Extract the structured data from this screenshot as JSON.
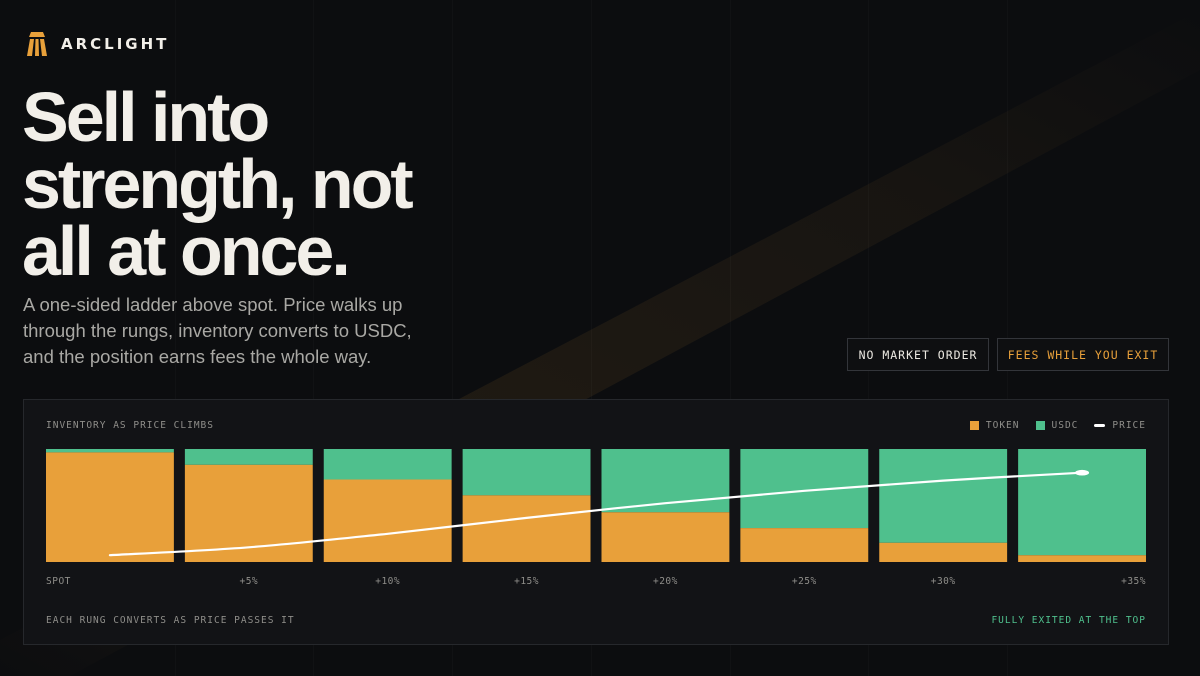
{
  "brand": {
    "name": "ARCLIGHT",
    "icon": "arch-logo-icon",
    "color": "#e8a03a"
  },
  "headline": {
    "lines": [
      "Sell into",
      "strength, not",
      "all at once."
    ]
  },
  "subhead": "A one-sided ladder above spot. Price walks up through the rungs, inventory converts to USDC, and the position earns fees the whole way.",
  "tags": [
    {
      "label": "NO MARKET ORDER"
    },
    {
      "label": "FEES WHILE YOU EXIT",
      "color": "#e8a03a"
    }
  ],
  "colors": {
    "token": "#e8a03a",
    "usdc": "#4fc08d",
    "price": "#ffffff",
    "background": "#0c0d0f"
  },
  "panel": {
    "title": "INVENTORY AS PRICE CLIMBS",
    "legend": [
      {
        "label": "TOKEN",
        "type": "swatch",
        "color": "#e8a03a"
      },
      {
        "label": "USDC",
        "type": "swatch",
        "color": "#4fc08d"
      },
      {
        "label": "PRICE",
        "type": "line",
        "color": "#ffffff"
      }
    ],
    "footer_left": "EACH RUNG CONVERTS AS PRICE PASSES IT",
    "footer_right": "FULLY EXITED AT THE TOP"
  },
  "chart_data": {
    "type": "bar",
    "stacked": true,
    "normalized": true,
    "categories": [
      "SPOT",
      "+5%",
      "+10%",
      "+15%",
      "+20%",
      "+25%",
      "+30%",
      "+35%"
    ],
    "series": [
      {
        "name": "TOKEN",
        "values": [
          97,
          86,
          73,
          59,
          44,
          30,
          17,
          6
        ]
      },
      {
        "name": "USDC",
        "values": [
          3,
          14,
          27,
          41,
          56,
          70,
          83,
          94
        ]
      }
    ],
    "price_line": {
      "name": "PRICE",
      "values": [
        6,
        13,
        25,
        39,
        52,
        63,
        72,
        79
      ]
    },
    "ylim": [
      0,
      100
    ],
    "grid": false,
    "legend": "top-right"
  }
}
